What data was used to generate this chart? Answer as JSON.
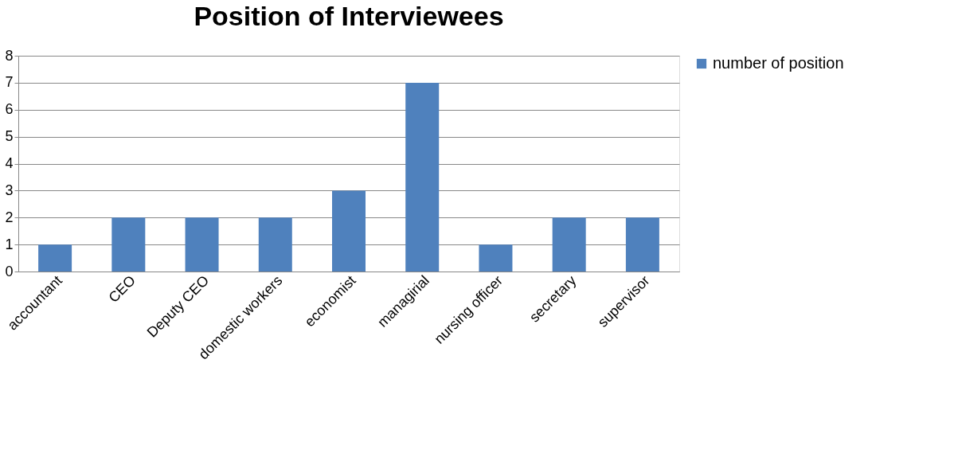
{
  "chart_data": {
    "type": "bar",
    "title": "Position of Interviewees",
    "categories": [
      "accountant",
      "CEO",
      "Deputy CEO",
      "domestic workers",
      "economist",
      "managirial",
      "nursing officer",
      "secretary",
      "supervisor"
    ],
    "series": [
      {
        "name": "number of position",
        "color": "#4f81bd",
        "values": [
          1,
          2,
          2,
          2,
          3,
          7,
          1,
          2,
          2
        ]
      }
    ],
    "ylim": [
      0,
      8
    ],
    "yticks": [
      0,
      1,
      2,
      3,
      4,
      5,
      6,
      7,
      8
    ],
    "grid": "y",
    "legend": "right"
  }
}
